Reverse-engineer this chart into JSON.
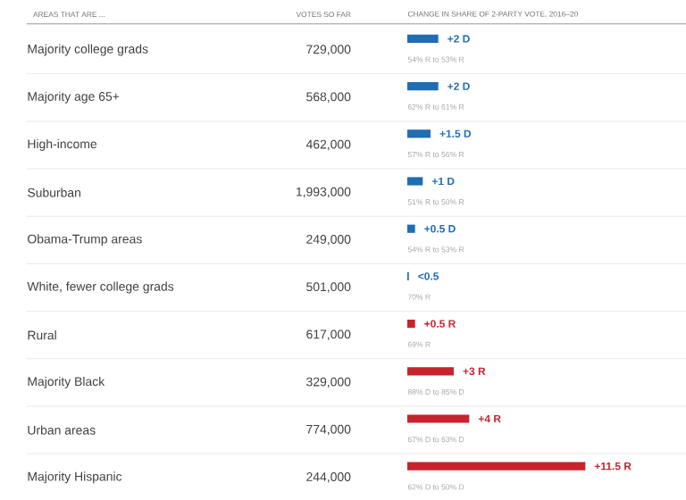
{
  "chart_data": {
    "type": "bar",
    "orientation": "horizontal",
    "ylabel": "AREAS THAT ARE ...",
    "xlabel": "CHANGE IN SHARE OF 2-PARTY VOTE, 2016–20",
    "categories": [
      "Majority college grads",
      "Majority age 65+",
      "High-income",
      "Suburban",
      "Obama-Trump areas",
      "White, fewer college grads",
      "Rural",
      "Majority Black",
      "Urban areas",
      "Majority Hispanic"
    ],
    "values": [
      2,
      2,
      1.5,
      1,
      0.5,
      0.1,
      0.5,
      3,
      4,
      11.5
    ],
    "colors": [
      "#1f6db3",
      "#1f6db3",
      "#1f6db3",
      "#1f6db3",
      "#1f6db3",
      "#1f6db3",
      "#c8232c",
      "#c8232c",
      "#c8232c",
      "#c8232c"
    ],
    "value_labels": [
      "+2 D",
      "+2 D",
      "+1.5 D",
      "+1 D",
      "+0.5 D",
      "<0.5",
      "+0.5 R",
      "+3 R",
      "+4 R",
      "+11.5 R"
    ],
    "xlim": [
      0,
      18
    ],
    "annotations": [
      "VOTES SO FAR",
      "729,000",
      "568,000",
      "462,000",
      "1,993,000",
      "249,000",
      "501,000",
      "617,000",
      "329,000",
      "774,000",
      "244,000",
      "54% R to 53% R",
      "62% R to 61% R",
      "57% R to 56% R",
      "51% R to 50% R",
      "54% R to 53% R",
      "70% R",
      "69% R",
      "88% D to 85% D",
      "67% D to 63% D",
      "62% D to 50% D"
    ]
  }
}
